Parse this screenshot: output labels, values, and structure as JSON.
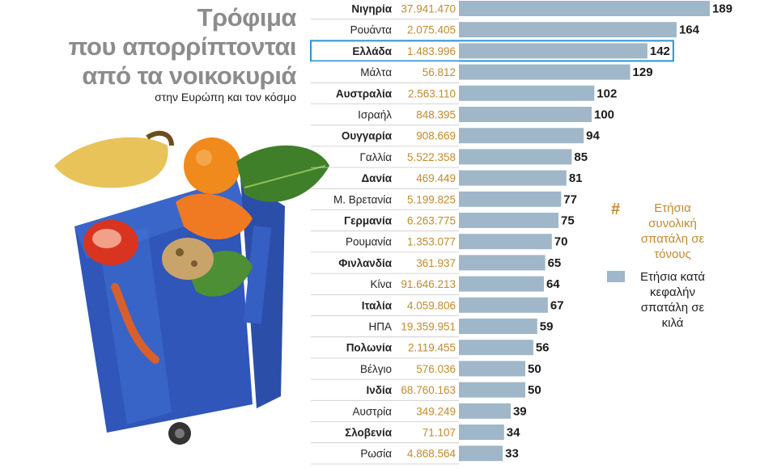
{
  "title_lines": [
    "Τρόφιμα",
    "που απορρίπτονται",
    "από τα νοικοκυριά"
  ],
  "subtitle": "στην Ευρώπη και τον κόσμο",
  "legend": {
    "total": {
      "symbol": "#",
      "label": "Ετήσια συνολική σπατάλη σε τόνους",
      "color": "#c28a2e"
    },
    "per_capita": {
      "label": "Ετήσια κατά κεφαλήν σπατάλη σε κιλά",
      "color": "#9fb7c8"
    }
  },
  "colors": {
    "bar": "#9fb7c8",
    "total_text": "#c28a2e",
    "highlight": "#2a93d4",
    "title": "#8c8c8c"
  },
  "chart_data": {
    "type": "bar",
    "orientation": "horizontal",
    "highlight": "Ελλάδα",
    "categories": [
      "Νιγηρία",
      "Ρουάντα",
      "Ελλάδα",
      "Μάλτα",
      "Αυστραλία",
      "Ισραήλ",
      "Ουγγαρία",
      "Γαλλία",
      "Δανία",
      "Μ. Βρετανία",
      "Γερμανία",
      "Ρουμανία",
      "Φινλανδία",
      "Κίνα",
      "Ιταλία",
      "ΗΠΑ",
      "Πολωνία",
      "Βέλγιο",
      "Ινδία",
      "Αυστρία",
      "Σλοβενία",
      "Ρωσία"
    ],
    "bold": [
      true,
      false,
      true,
      false,
      true,
      false,
      true,
      false,
      true,
      false,
      true,
      false,
      true,
      false,
      true,
      false,
      true,
      false,
      true,
      false,
      true,
      false
    ],
    "totals": [
      "37.941.470",
      "2.075.405",
      "1.483.996",
      "56.812",
      "2.563.110",
      "848.395",
      "908.669",
      "5.522.358",
      "469.449",
      "5.199.825",
      "6.263.775",
      "1.353.077",
      "361.937",
      "91.646.213",
      "4.059.806",
      "19.359.951",
      "2.119.455",
      "576.036",
      "68.760.163",
      "349.249",
      "71.107",
      "4.868.564"
    ],
    "values": [
      189,
      164,
      142,
      129,
      102,
      100,
      94,
      85,
      81,
      77,
      75,
      70,
      65,
      64,
      67,
      59,
      56,
      50,
      50,
      39,
      34,
      33
    ]
  }
}
